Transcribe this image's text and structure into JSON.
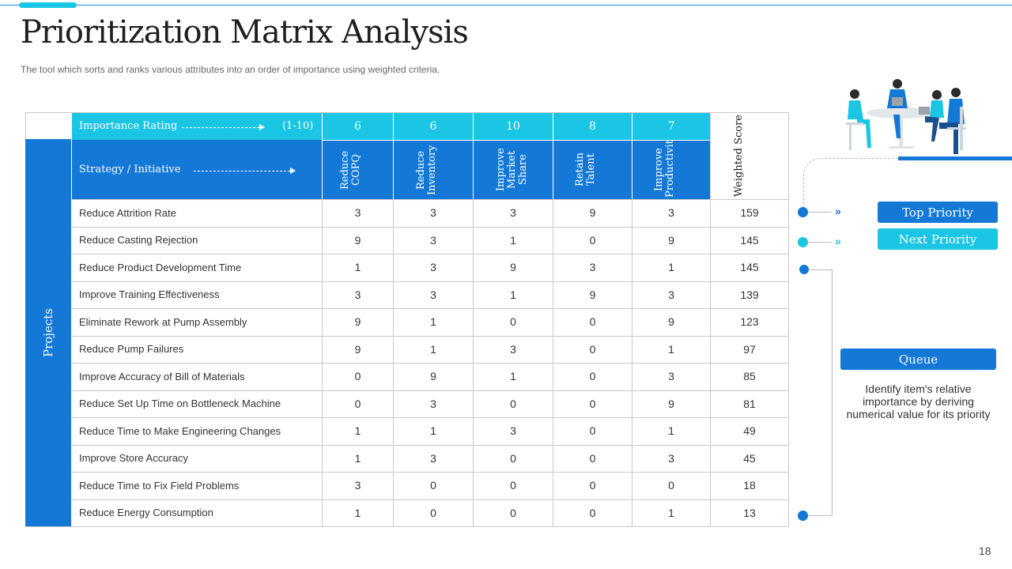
{
  "header": {
    "title": "Prioritization Matrix Analysis",
    "subtitle": "The tool which sorts and ranks various  attributes into an order of importance using weighted  criteria."
  },
  "matrix": {
    "importance_label": "Importance Rating",
    "importance_scale": "(1-10)",
    "strategy_label": "Strategy / Initiative",
    "projects_label": "Projects",
    "weighted_label": "Weighted Score",
    "criteria": [
      {
        "name": "Reduce COPQ",
        "weight": "6"
      },
      {
        "name": "Reduce Inventory",
        "weight": "6"
      },
      {
        "name": "Improve Market Share",
        "weight": "10"
      },
      {
        "name": "Retain Talent",
        "weight": "8"
      },
      {
        "name": "Improve Productivity",
        "weight": "7"
      }
    ],
    "rows": [
      {
        "name": "Reduce Attrition Rate",
        "scores": [
          "3",
          "3",
          "3",
          "9",
          "3"
        ],
        "weighted": "159"
      },
      {
        "name": "Reduce Casting Rejection",
        "scores": [
          "9",
          "3",
          "1",
          "0",
          "9"
        ],
        "weighted": "145"
      },
      {
        "name": "Reduce Product Development  Time",
        "scores": [
          "1",
          "3",
          "9",
          "3",
          "1"
        ],
        "weighted": "145"
      },
      {
        "name": "Improve  Training  Effectiveness",
        "scores": [
          "3",
          "3",
          "1",
          "9",
          "3"
        ],
        "weighted": "139"
      },
      {
        "name": "Eliminate Rework  at Pump Assembly",
        "scores": [
          "9",
          "1",
          "0",
          "0",
          "9"
        ],
        "weighted": "123"
      },
      {
        "name": "Reduce Pump Failures",
        "scores": [
          "9",
          "1",
          "3",
          "0",
          "1"
        ],
        "weighted": "97"
      },
      {
        "name": "Improve  Accuracy of Bill of Materials",
        "scores": [
          "0",
          "9",
          "1",
          "0",
          "3"
        ],
        "weighted": "85"
      },
      {
        "name": "Reduce Set Up Time  on Bottleneck Machine",
        "scores": [
          "0",
          "3",
          "0",
          "0",
          "9"
        ],
        "weighted": "81"
      },
      {
        "name": "Reduce Time  to Make Engineering  Changes",
        "scores": [
          "1",
          "1",
          "3",
          "0",
          "1"
        ],
        "weighted": "49"
      },
      {
        "name": "Improve  Store Accuracy",
        "scores": [
          "1",
          "3",
          "0",
          "0",
          "3"
        ],
        "weighted": "45"
      },
      {
        "name": "Reduce Time  to Fix Field Problems",
        "scores": [
          "3",
          "0",
          "0",
          "0",
          "0"
        ],
        "weighted": "18"
      },
      {
        "name": "Reduce Energy Consumption",
        "scores": [
          "1",
          "0",
          "0",
          "0",
          "1"
        ],
        "weighted": "13"
      }
    ]
  },
  "legend": {
    "top_priority": "Top Priority",
    "next_priority": "Next Priority",
    "queue": "Queue",
    "queue_description": "Identify item's relative importance by deriving numerical value for its priority",
    "chevrons": "»",
    "colors": {
      "top": "#1378d6",
      "next": "#1bc6e4"
    }
  },
  "page_number": "18"
}
